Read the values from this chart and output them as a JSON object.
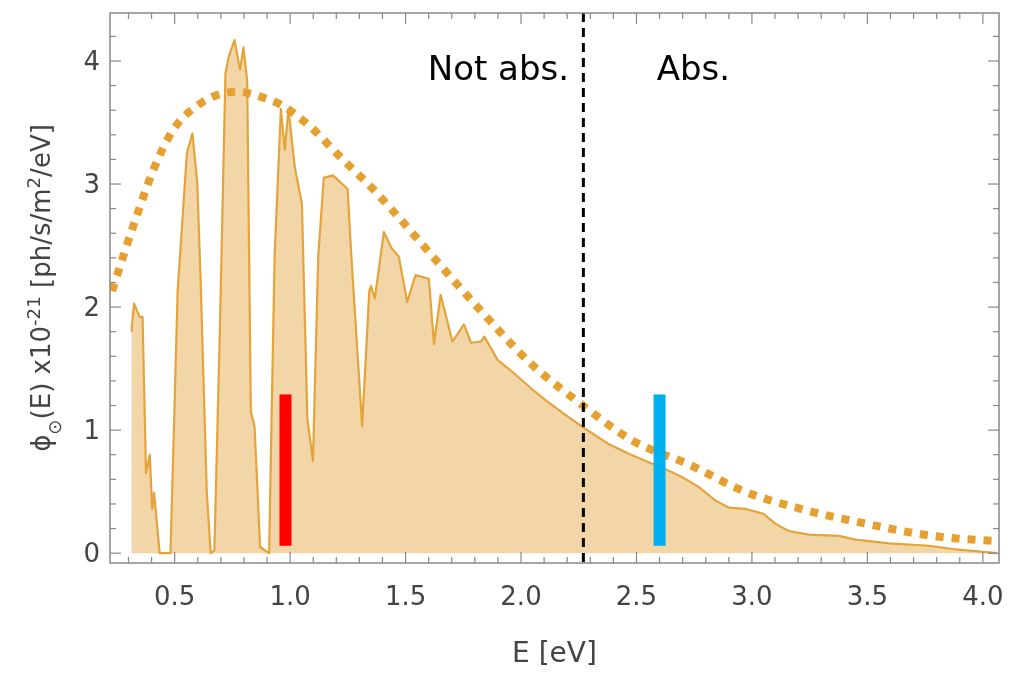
{
  "chart_data": {
    "type": "area",
    "xlabel": "E [eV]",
    "ylabel": "ϕ$_{⊙}$(E) x10$^{-21}$ [ph/s/m$^{2}$/eV]",
    "xlim": [
      0.22,
      4.07
    ],
    "ylim": [
      -0.08,
      4.39
    ],
    "xticks": [
      {
        "value": 0.3,
        "label": null
      },
      {
        "value": 0.4,
        "label": null
      },
      {
        "value": 0.5,
        "label": "0.5"
      },
      {
        "value": 0.6,
        "label": null
      },
      {
        "value": 0.7,
        "label": null
      },
      {
        "value": 0.8,
        "label": null
      },
      {
        "value": 0.9,
        "label": null
      },
      {
        "value": 1.0,
        "label": "1.0"
      },
      {
        "value": 1.1,
        "label": null
      },
      {
        "value": 1.2,
        "label": null
      },
      {
        "value": 1.3,
        "label": null
      },
      {
        "value": 1.4,
        "label": null
      },
      {
        "value": 1.5,
        "label": "1.5"
      },
      {
        "value": 1.6,
        "label": null
      },
      {
        "value": 1.7,
        "label": null
      },
      {
        "value": 1.8,
        "label": null
      },
      {
        "value": 1.9,
        "label": null
      },
      {
        "value": 2.0,
        "label": "2.0"
      },
      {
        "value": 2.1,
        "label": null
      },
      {
        "value": 2.2,
        "label": null
      },
      {
        "value": 2.3,
        "label": null
      },
      {
        "value": 2.4,
        "label": null
      },
      {
        "value": 2.5,
        "label": "2.5"
      },
      {
        "value": 2.6,
        "label": null
      },
      {
        "value": 2.7,
        "label": null
      },
      {
        "value": 2.8,
        "label": null
      },
      {
        "value": 2.9,
        "label": null
      },
      {
        "value": 3.0,
        "label": "3.0"
      },
      {
        "value": 3.1,
        "label": null
      },
      {
        "value": 3.2,
        "label": null
      },
      {
        "value": 3.3,
        "label": null
      },
      {
        "value": 3.4,
        "label": null
      },
      {
        "value": 3.5,
        "label": "3.5"
      },
      {
        "value": 3.6,
        "label": null
      },
      {
        "value": 3.7,
        "label": null
      },
      {
        "value": 3.8,
        "label": null
      },
      {
        "value": 3.9,
        "label": null
      },
      {
        "value": 4.0,
        "label": "4.0"
      }
    ],
    "yticks": [
      0,
      {
        "value": 0.2,
        "label": null
      },
      {
        "value": 0.4,
        "label": null
      },
      {
        "value": 0.6,
        "label": null
      },
      {
        "value": 0.8,
        "label": null
      },
      1,
      {
        "value": 1.2,
        "label": null
      },
      {
        "value": 1.4,
        "label": null
      },
      {
        "value": 1.6,
        "label": null
      },
      {
        "value": 1.8,
        "label": null
      },
      2,
      {
        "value": 2.2,
        "label": null
      },
      {
        "value": 2.4,
        "label": null
      },
      {
        "value": 2.6,
        "label": null
      },
      {
        "value": 2.8,
        "label": null
      },
      3,
      {
        "value": 3.2,
        "label": null
      },
      {
        "value": 3.4,
        "label": null
      },
      {
        "value": 3.6,
        "label": null
      },
      {
        "value": 3.8,
        "label": null
      },
      4,
      {
        "value": 4.2,
        "label": null
      }
    ],
    "series": [
      {
        "color": "#e4a43b",
        "x": [
          0.313,
          0.324,
          0.348,
          0.361,
          0.376,
          0.392,
          0.403,
          0.411,
          0.435,
          0.482,
          0.513,
          0.553,
          0.577,
          0.598,
          0.613,
          0.639,
          0.656,
          0.672,
          0.696,
          0.72,
          0.735,
          0.759,
          0.783,
          0.798,
          0.814,
          0.83,
          0.846,
          0.87,
          0.909,
          0.933,
          0.96,
          0.977,
          0.993,
          1.02,
          1.051,
          1.075,
          1.099,
          1.122,
          1.146,
          1.186,
          1.249,
          1.265,
          1.312,
          1.343,
          1.35,
          1.367,
          1.406,
          1.439,
          1.471,
          1.507,
          1.543,
          1.601,
          1.623,
          1.652,
          1.703,
          1.753,
          1.783,
          1.826,
          1.841,
          1.899,
          1.971,
          2.043,
          2.116,
          2.203,
          2.271,
          2.377,
          2.464,
          2.551,
          2.652,
          2.696,
          2.768,
          2.84,
          2.899,
          2.971,
          3.05,
          3.101,
          3.159,
          3.246,
          3.377,
          3.449,
          3.594,
          3.768,
          3.884,
          4.0,
          4.06
        ],
        "values": [
          1.8,
          2.03,
          1.92,
          1.92,
          0.65,
          0.8,
          0.36,
          0.49,
          0.0,
          0.0,
          2.13,
          3.25,
          3.41,
          3.01,
          2.19,
          0.5,
          0.0,
          0.02,
          1.83,
          3.9,
          4.04,
          4.17,
          3.93,
          4.11,
          3.84,
          1.15,
          1.03,
          0.05,
          0.0,
          2.42,
          3.61,
          3.28,
          3.61,
          3.14,
          2.84,
          1.09,
          0.75,
          2.42,
          3.05,
          3.07,
          2.96,
          2.42,
          1.03,
          2.13,
          2.17,
          2.07,
          2.61,
          2.48,
          2.41,
          2.04,
          2.26,
          2.23,
          1.7,
          2.1,
          1.72,
          1.86,
          1.71,
          1.72,
          1.76,
          1.57,
          1.46,
          1.34,
          1.23,
          1.11,
          1.02,
          0.89,
          0.81,
          0.74,
          0.66,
          0.62,
          0.54,
          0.43,
          0.37,
          0.36,
          0.32,
          0.24,
          0.18,
          0.15,
          0.14,
          0.11,
          0.08,
          0.06,
          0.03,
          0.01,
          0.0
        ]
      },
      {
        "type": "line",
        "color": "#e6a030",
        "line_style": "dotted",
        "x": [
          0.229,
          0.332,
          0.411,
          0.49,
          0.6,
          0.696,
          0.774,
          0.854,
          0.964,
          1.091,
          1.217,
          1.343,
          1.47,
          1.609,
          1.826,
          2.043,
          2.261,
          2.478,
          2.74,
          2.957,
          3.232,
          3.493,
          3.783,
          4.05
        ],
        "values": [
          2.13,
          2.72,
          3.13,
          3.43,
          3.64,
          3.73,
          3.75,
          3.72,
          3.64,
          3.46,
          3.22,
          2.99,
          2.73,
          2.43,
          1.97,
          1.54,
          1.21,
          0.92,
          0.71,
          0.51,
          0.35,
          0.24,
          0.14,
          0.1
        ]
      },
      {
        "type": "bar",
        "color": "#ff0000",
        "x": [
          0.98
        ],
        "base": [
          0.06
        ],
        "values": [
          1.23
        ]
      },
      {
        "type": "bar",
        "color": "#00b0f0",
        "x": [
          2.6
        ],
        "base": [
          0.06
        ],
        "values": [
          1.23
        ]
      }
    ],
    "ref_lines": [
      {
        "axis": "x",
        "value": 2.27,
        "color": "#000000",
        "line_style": "dashed"
      }
    ],
    "annotations": [
      "Not abs.",
      "Abs."
    ]
  }
}
